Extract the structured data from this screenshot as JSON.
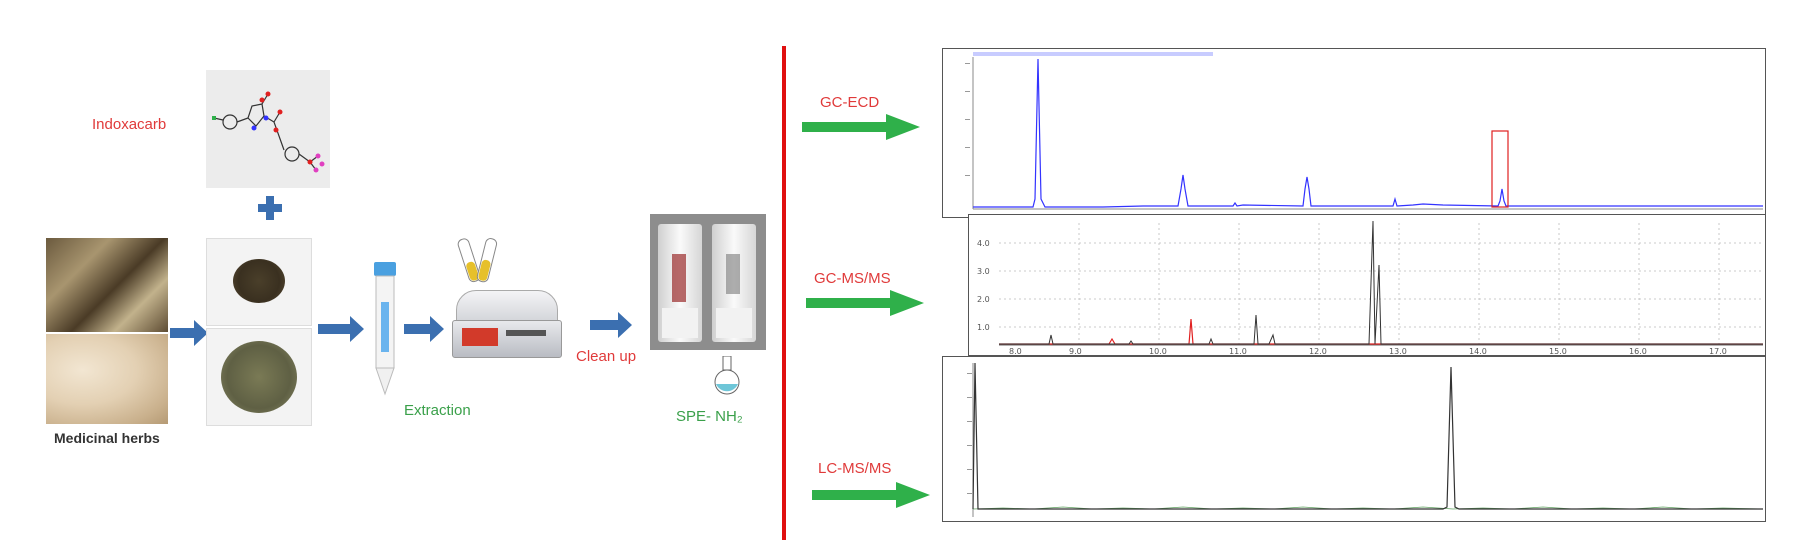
{
  "labels": {
    "analyte": "Indoxacarb",
    "sample": "Medicinal herbs",
    "extraction": "Extraction",
    "cleanup": "Clean up",
    "spe": "SPE- NH₂"
  },
  "methods": {
    "gc_ecd": "GC-ECD",
    "gc_msms": "GC-MS/MS",
    "lc_msms": "LC-MS/MS"
  },
  "gc_msms_axis": {
    "x_ticks": [
      "8.0",
      "9.0",
      "10.0",
      "11.0",
      "12.0",
      "13.0",
      "14.0",
      "15.0",
      "16.0",
      "17.0"
    ],
    "y_ticks": [
      "1.0",
      "2.0",
      "3.0",
      "4.0"
    ]
  },
  "colors": {
    "arrow_blue": "#3b6fb0",
    "arrow_green": "#2fb04a",
    "divider_red": "#e01010",
    "label_red": "#e03a3a",
    "label_green": "#3aa04a",
    "trace_blue": "#3333ff",
    "trace_red": "#e02020",
    "trace_dark": "#333333"
  }
}
